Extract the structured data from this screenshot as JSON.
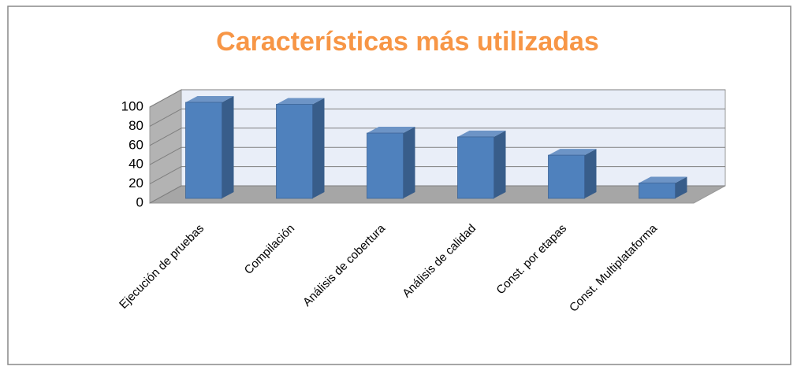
{
  "chart_data": {
    "type": "bar3d",
    "title": "Características más utilizadas",
    "categories": [
      "Ejecución de pruebas",
      "Compilación",
      "Análisis de cobertura",
      "Análisis de calidad",
      "Const. por etapas",
      "Const. Multiplataforma"
    ],
    "values": [
      100,
      98,
      68,
      64,
      45,
      16
    ],
    "color": "#4f81bd",
    "ylim": [
      0,
      100
    ],
    "yticks": [
      0,
      20,
      40,
      60,
      80,
      100
    ],
    "grid": true
  }
}
